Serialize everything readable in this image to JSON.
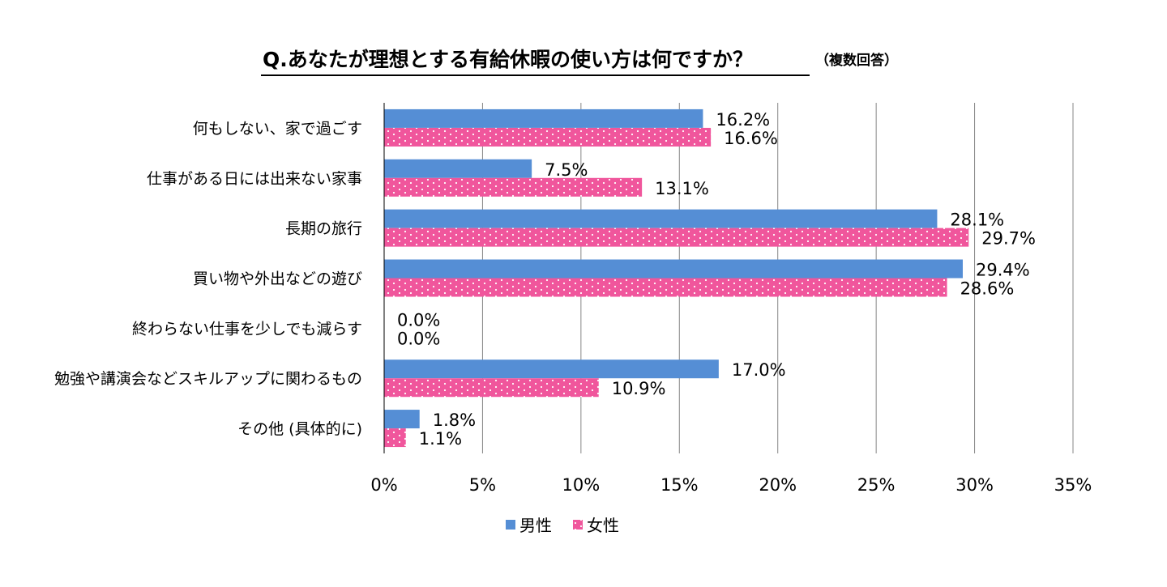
{
  "chart_data": {
    "type": "bar",
    "orientation": "horizontal",
    "title": "Q.あなたが理想とする有給休暇の使い方は何ですか？",
    "subtitle": "（複数回答）",
    "categories": [
      "何もしない、家で過ごす",
      "仕事がある日には出来ない家事",
      "長期の旅行",
      "買い物や外出などの遊び",
      "終わらない仕事を少しでも減らす",
      "勉強や講演会などスキルアップに関わるもの",
      "その他 (具体的に)"
    ],
    "series": [
      {
        "name": "男性",
        "color": "#558ed5",
        "values": [
          16.2,
          7.5,
          28.1,
          29.4,
          0.0,
          17.0,
          1.8
        ],
        "labels": [
          "16.2%",
          "7.5%",
          "28.1%",
          "29.4%",
          "0.0%",
          "17.0%",
          "1.8%"
        ]
      },
      {
        "name": "女性",
        "color": "#f0569c",
        "pattern": "white-dots",
        "values": [
          16.6,
          13.1,
          29.7,
          28.6,
          0.0,
          10.9,
          1.1
        ],
        "labels": [
          "16.6%",
          "13.1%",
          "29.7%",
          "28.6%",
          "0.0%",
          "10.9%",
          "1.1%"
        ]
      }
    ],
    "xlim": [
      0,
      35
    ],
    "xticks": [
      0,
      5,
      10,
      15,
      20,
      25,
      30,
      35
    ],
    "xtick_labels": [
      "0%",
      "5%",
      "10%",
      "15%",
      "20%",
      "25%",
      "30%",
      "35%"
    ],
    "grid": true,
    "legend": "bottom"
  }
}
